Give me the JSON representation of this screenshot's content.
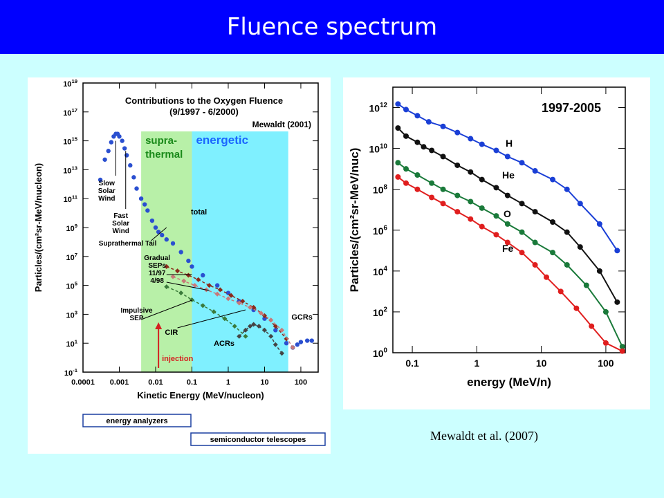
{
  "slide": {
    "title": "Fluence spectrum",
    "citation": "Mewaldt et al. (2007)",
    "colors": {
      "title_bar": "#0000ff",
      "background": "#ccffff",
      "title_text": "#ffffff"
    }
  },
  "chart_data": [
    {
      "type": "scatter",
      "title": "Contributions to the Oxygen Fluence",
      "subtitle": "(9/1997 - 6/2000)",
      "source_label": "Mewaldt (2001)",
      "xlabel": "Kinetic Energy (MeV/nucleon)",
      "ylabel": "Particles/(cm²sr-MeV/nucleon)",
      "xscale": "log",
      "yscale": "log",
      "xlim": [
        0.0001,
        300
      ],
      "ylim": [
        0.1,
        1e+19
      ],
      "x_tick_labels": [
        "0.0001",
        "0.001",
        "0.01",
        "0.1",
        "1",
        "10",
        "100"
      ],
      "y_tick_exponents": [
        "19",
        "17",
        "15",
        "13",
        "11",
        "9",
        "7",
        "5",
        "3",
        "1",
        "-1"
      ],
      "y_tick_base": "10",
      "regions": [
        {
          "label_lines": [
            "supra-",
            "thermal"
          ],
          "x_range": [
            0.004,
            0.1
          ],
          "color": "#b8f0a8",
          "label_color": "#1a8a1a"
        },
        {
          "label_lines": [
            "energetic"
          ],
          "x_range": [
            0.1,
            45
          ],
          "color": "#7ff0ff",
          "label_color": "#1a66ff"
        }
      ],
      "annotations": {
        "slow_solar_wind": [
          "Slow",
          "Solar",
          "Wind"
        ],
        "fast_solar_wind": [
          "Fast",
          "Solar",
          "Wind"
        ],
        "suprathermal_tail": "Suprathermal Tail",
        "total": "total",
        "gradual_seps": [
          "Gradual",
          "SEPs",
          "11/97",
          "4/98"
        ],
        "impulsive_sep": [
          "Impulsive",
          "SEP"
        ],
        "cir": "CIR",
        "acrs": "ACRs",
        "gcrs": "GCRs",
        "injection": "injection"
      },
      "instrument_boxes": [
        "energy analyzers",
        "semiconductor telescopes"
      ],
      "series": [
        {
          "name": "total",
          "color": "#2a4fd0",
          "x": [
            0.0003,
            0.0004,
            0.0005,
            0.0006,
            0.0007,
            0.0008,
            0.0009,
            0.001,
            0.0012,
            0.0014,
            0.0016,
            0.002,
            0.0025,
            0.003,
            0.004,
            0.005,
            0.006,
            0.008,
            0.01,
            0.012,
            0.015,
            0.02,
            0.03,
            0.05,
            0.08,
            0.1,
            0.2,
            0.5,
            1,
            2,
            5,
            10,
            20,
            40,
            60,
            80,
            100,
            150,
            200
          ],
          "y": [
            2000000000000.0,
            50000000000000.0,
            200000000000000.0,
            800000000000000.0,
            2000000000000000.0,
            3000000000000000.0,
            3000000000000000.0,
            2000000000000000.0,
            1000000000000000.0,
            300000000000000.0,
            100000000000000.0,
            20000000000000.0,
            3000000000000.0,
            500000000000.0,
            100000000000.0,
            40000000000.0,
            15000000000.0,
            3000000000.0,
            1000000000.0,
            500000000.0,
            300000000.0,
            150000000.0,
            80000000.0,
            20000000.0,
            5000000.0,
            2000000.0,
            500000.0,
            100000.0,
            30000.0,
            8000.0,
            2000.0,
            500,
            80,
            10,
            5,
            8,
            12,
            15,
            15
          ]
        },
        {
          "name": "Gradual SEPs 11/97",
          "color": "#8b2a1a",
          "x": [
            0.02,
            0.04,
            0.08,
            0.15,
            0.3,
            0.6,
            1.2,
            2.5,
            5,
            10,
            20,
            40
          ],
          "y": [
            2000000.0,
            1000000.0,
            500000.0,
            250000.0,
            100000.0,
            50000.0,
            20000.0,
            8000.0,
            3000.0,
            800,
            150,
            20
          ]
        },
        {
          "name": "Gradual SEPs 4/98",
          "color": "#c87878",
          "x": [
            0.03,
            0.06,
            0.12,
            0.25,
            0.5,
            1,
            2,
            4,
            8,
            15,
            30,
            60
          ],
          "y": [
            400000.0,
            200000.0,
            100000.0,
            50000.0,
            25000.0,
            12000.0,
            6000.0,
            3000.0,
            1200.0,
            400,
            80,
            5
          ]
        },
        {
          "name": "Impulsive SEP",
          "color": "#3a7a3a",
          "x": [
            0.02,
            0.05,
            0.1,
            0.2,
            0.4,
            0.8,
            1.5,
            3
          ],
          "y": [
            80000.0,
            30000.0,
            10000.0,
            4000.0,
            1500.0,
            500,
            150,
            30
          ]
        },
        {
          "name": "ACRs",
          "color": "#444444",
          "x": [
            2,
            3,
            4,
            5,
            7,
            10,
            15,
            20,
            30
          ],
          "y": [
            30,
            80,
            150,
            200,
            150,
            80,
            30,
            8,
            2
          ]
        }
      ]
    },
    {
      "type": "line",
      "label": "1997-2005",
      "xlabel": "energy  (MeV/n)",
      "ylabel": "Particles/(cm²sr-MeV/nuc)",
      "xscale": "log",
      "yscale": "log",
      "xlim": [
        0.05,
        200
      ],
      "ylim": [
        1,
        10000000000000.0
      ],
      "x_tick_labels": [
        "0.1",
        "1",
        "10",
        "100"
      ],
      "y_tick_exponents": [
        "12",
        "10",
        "8",
        "6",
        "4",
        "2",
        "0"
      ],
      "y_tick_base": "10",
      "series": [
        {
          "name": "H",
          "color": "#1a3fd6",
          "x": [
            0.06,
            0.08,
            0.12,
            0.18,
            0.3,
            0.5,
            0.8,
            1.2,
            2,
            3,
            5,
            8,
            15,
            25,
            40,
            80,
            150
          ],
          "y": [
            1500000000000.0,
            800000000000.0,
            400000000000.0,
            200000000000.0,
            120000000000.0,
            60000000000.0,
            30000000000.0,
            16000000000.0,
            8000000000.0,
            4000000000.0,
            2000000000.0,
            800000000.0,
            300000000.0,
            100000000.0,
            20000000.0,
            2000000.0,
            100000.0
          ]
        },
        {
          "name": "He",
          "color": "#111111",
          "x": [
            0.06,
            0.08,
            0.12,
            0.15,
            0.2,
            0.3,
            0.5,
            0.8,
            1.2,
            2,
            3,
            5,
            8,
            15,
            25,
            40,
            80,
            150
          ],
          "y": [
            100000000000.0,
            40000000000.0,
            20000000000.0,
            12000000000.0,
            8000000000.0,
            4000000000.0,
            1500000000.0,
            700000000.0,
            300000000.0,
            120000000.0,
            50000000.0,
            20000000.0,
            8000000.0,
            2500000.0,
            800000.0,
            150000.0,
            10000.0,
            300.0
          ]
        },
        {
          "name": "O",
          "color": "#1a7a3a",
          "x": [
            0.06,
            0.08,
            0.12,
            0.2,
            0.3,
            0.5,
            0.8,
            1.2,
            2,
            3,
            5,
            8,
            15,
            25,
            50,
            100,
            180
          ],
          "y": [
            2000000000.0,
            1000000000.0,
            500000000.0,
            200000000.0,
            100000000.0,
            50000000.0,
            25000000.0,
            12000000.0,
            5000000.0,
            2000000.0,
            800000.0,
            250000.0,
            80000.0,
            20000.0,
            2000.0,
            100.0,
            2
          ]
        },
        {
          "name": "Fe",
          "color": "#e01e1e",
          "x": [
            0.06,
            0.08,
            0.12,
            0.2,
            0.3,
            0.5,
            0.8,
            1.2,
            2,
            3,
            5,
            8,
            12,
            20,
            35,
            60,
            100,
            180
          ],
          "y": [
            400000000.0,
            200000000.0,
            100000000.0,
            40000000.0,
            20000000.0,
            8000000.0,
            3500000.0,
            1500000.0,
            600000.0,
            250000.0,
            80000.0,
            20000.0,
            5000.0,
            1000.0,
            150,
            20,
            3,
            1.2
          ]
        }
      ]
    }
  ]
}
